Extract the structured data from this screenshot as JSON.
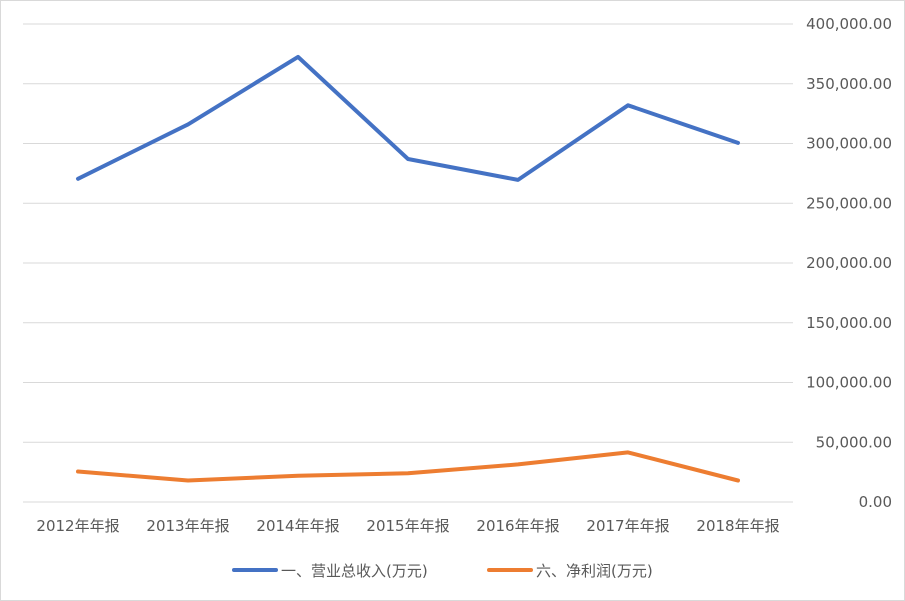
{
  "chart_data": {
    "type": "line",
    "title": "",
    "xlabel": "",
    "ylabel": "",
    "categories": [
      "2012年年报",
      "2013年年报",
      "2014年年报",
      "2015年年报",
      "2016年年报",
      "2017年年报",
      "2018年年报"
    ],
    "series": [
      {
        "name": "一、营业总收入(万元)",
        "color": "#4472C4",
        "values": [
          270500,
          316000,
          372500,
          287000,
          269500,
          332000,
          300500
        ]
      },
      {
        "name": "六、净利润(万元)",
        "color": "#ED7D31",
        "values": [
          25500,
          18000,
          22000,
          24000,
          31500,
          41500,
          18000
        ]
      }
    ],
    "ylim": [
      0,
      400000
    ],
    "ytick_labels": [
      "0.00",
      "50,000.00",
      "100,000.00",
      "150,000.00",
      "200,000.00",
      "250,000.00",
      "300,000.00",
      "350,000.00",
      "400,000.00"
    ],
    "y_axis_side": "right",
    "grid": true,
    "legend_position": "bottom"
  }
}
